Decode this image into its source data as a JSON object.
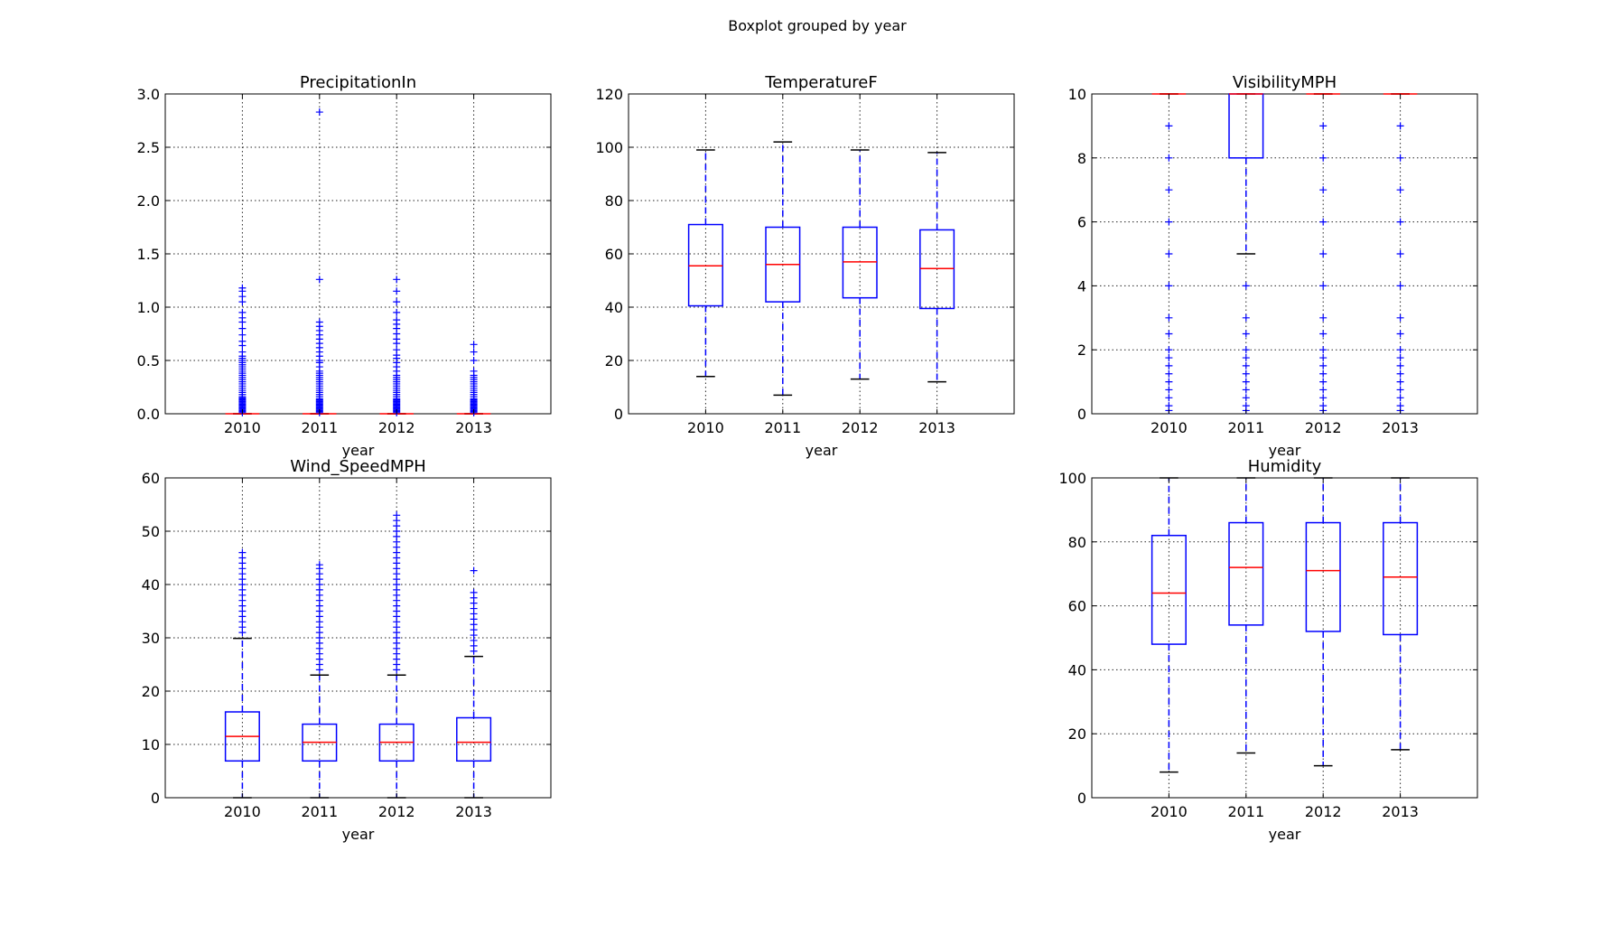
{
  "colors": {
    "box": "#0000ff",
    "median": "#ff0000",
    "cap": "#000000",
    "flier": "#0000ff",
    "background": "#ffffff"
  },
  "chart_data": {
    "type": "boxplot",
    "title": "Boxplot grouped by year",
    "panels": [
      {
        "title": "PrecipitationIn",
        "xlabel": "year",
        "categories": [
          "2010",
          "2011",
          "2012",
          "2013"
        ],
        "ylim": [
          0,
          3.0
        ],
        "yticks": [
          0,
          0.5,
          1.0,
          1.5,
          2.0,
          2.5,
          3.0
        ],
        "ytick_labels": [
          "0.0",
          "0.5",
          "1.0",
          "1.5",
          "2.0",
          "2.5",
          "3.0"
        ],
        "grid": true,
        "boxes": [
          {
            "q1": 0,
            "median": 0,
            "q3": 0,
            "whislo": 0,
            "whishi": 0,
            "fliers": [
              0.01,
              0.02,
              0.03,
              0.04,
              0.05,
              0.06,
              0.07,
              0.08,
              0.09,
              0.1,
              0.11,
              0.12,
              0.13,
              0.14,
              0.15,
              0.16,
              0.18,
              0.2,
              0.22,
              0.24,
              0.26,
              0.28,
              0.3,
              0.32,
              0.34,
              0.36,
              0.38,
              0.4,
              0.42,
              0.44,
              0.46,
              0.48,
              0.5,
              0.52,
              0.54,
              0.58,
              0.64,
              0.68,
              0.74,
              0.8,
              0.86,
              0.9,
              0.95,
              1.05,
              1.1,
              1.15,
              1.18
            ]
          },
          {
            "q1": 0,
            "median": 0,
            "q3": 0,
            "whislo": 0,
            "whishi": 0,
            "fliers": [
              0.01,
              0.02,
              0.03,
              0.04,
              0.05,
              0.06,
              0.07,
              0.08,
              0.09,
              0.1,
              0.11,
              0.12,
              0.13,
              0.14,
              0.16,
              0.18,
              0.2,
              0.22,
              0.24,
              0.26,
              0.28,
              0.3,
              0.32,
              0.34,
              0.36,
              0.38,
              0.4,
              0.44,
              0.48,
              0.5,
              0.54,
              0.58,
              0.62,
              0.66,
              0.7,
              0.74,
              0.78,
              0.82,
              0.86,
              1.26,
              2.83
            ]
          },
          {
            "q1": 0,
            "median": 0,
            "q3": 0,
            "whislo": 0,
            "whishi": 0,
            "fliers": [
              0.01,
              0.02,
              0.03,
              0.04,
              0.05,
              0.06,
              0.07,
              0.08,
              0.09,
              0.1,
              0.11,
              0.12,
              0.13,
              0.14,
              0.16,
              0.18,
              0.2,
              0.22,
              0.24,
              0.26,
              0.28,
              0.3,
              0.32,
              0.34,
              0.36,
              0.4,
              0.44,
              0.48,
              0.52,
              0.55,
              0.6,
              0.66,
              0.7,
              0.75,
              0.8,
              0.84,
              0.88,
              0.95,
              1.05,
              1.15,
              1.26
            ]
          },
          {
            "q1": 0,
            "median": 0,
            "q3": 0,
            "whislo": 0,
            "whishi": 0,
            "fliers": [
              0.01,
              0.02,
              0.03,
              0.04,
              0.05,
              0.06,
              0.07,
              0.08,
              0.09,
              0.1,
              0.11,
              0.12,
              0.13,
              0.14,
              0.16,
              0.18,
              0.2,
              0.22,
              0.24,
              0.26,
              0.28,
              0.3,
              0.32,
              0.34,
              0.36,
              0.4,
              0.5,
              0.58,
              0.65
            ]
          }
        ]
      },
      {
        "title": "TemperatureF",
        "xlabel": "year",
        "categories": [
          "2010",
          "2011",
          "2012",
          "2013"
        ],
        "ylim": [
          0,
          120
        ],
        "yticks": [
          0,
          20,
          40,
          60,
          80,
          100,
          120
        ],
        "ytick_labels": [
          "0",
          "20",
          "40",
          "60",
          "80",
          "100",
          "120"
        ],
        "grid": true,
        "boxes": [
          {
            "q1": 40.5,
            "median": 55.5,
            "q3": 71,
            "whislo": 14,
            "whishi": 99,
            "fliers": []
          },
          {
            "q1": 42,
            "median": 56,
            "q3": 70,
            "whislo": 7,
            "whishi": 102,
            "fliers": []
          },
          {
            "q1": 43.5,
            "median": 57,
            "q3": 70,
            "whislo": 13,
            "whishi": 99,
            "fliers": []
          },
          {
            "q1": 39.5,
            "median": 54.5,
            "q3": 69,
            "whislo": 12,
            "whishi": 98,
            "fliers": []
          }
        ]
      },
      {
        "title": "VisibilityMPH",
        "xlabel": "year",
        "categories": [
          "2010",
          "2011",
          "2012",
          "2013"
        ],
        "ylim": [
          0,
          10
        ],
        "yticks": [
          0,
          2,
          4,
          6,
          8,
          10
        ],
        "ytick_labels": [
          "0",
          "2",
          "4",
          "6",
          "8",
          "10"
        ],
        "grid": true,
        "boxes": [
          {
            "q1": 10,
            "median": 10,
            "q3": 10,
            "whislo": 10,
            "whishi": 10,
            "fliers": [
              0.1,
              0.25,
              0.5,
              0.75,
              1.0,
              1.25,
              1.5,
              1.75,
              2.0,
              2.5,
              3.0,
              4.0,
              5.0,
              6.0,
              7.0,
              8.0,
              9.0
            ]
          },
          {
            "q1": 8,
            "median": 10,
            "q3": 10,
            "whislo": 5,
            "whishi": 10,
            "fliers": [
              0.1,
              0.25,
              0.5,
              0.75,
              1.0,
              1.25,
              1.5,
              1.75,
              2.0,
              2.5,
              3.0,
              4.0
            ]
          },
          {
            "q1": 10,
            "median": 10,
            "q3": 10,
            "whislo": 10,
            "whishi": 10,
            "fliers": [
              0.1,
              0.25,
              0.5,
              0.75,
              1.0,
              1.25,
              1.5,
              1.75,
              2.0,
              2.5,
              3.0,
              4.0,
              5.0,
              6.0,
              7.0,
              8.0,
              9.0
            ]
          },
          {
            "q1": 10,
            "median": 10,
            "q3": 10,
            "whislo": 10,
            "whishi": 10,
            "fliers": [
              0.1,
              0.25,
              0.5,
              0.75,
              1.0,
              1.25,
              1.5,
              1.75,
              2.0,
              2.5,
              3.0,
              4.0,
              5.0,
              6.0,
              7.0,
              8.0,
              9.0
            ]
          }
        ]
      },
      {
        "title": "Wind_SpeedMPH",
        "xlabel": "year",
        "categories": [
          "2010",
          "2011",
          "2012",
          "2013"
        ],
        "ylim": [
          0,
          60
        ],
        "yticks": [
          0,
          10,
          20,
          30,
          40,
          50,
          60
        ],
        "ytick_labels": [
          "0",
          "10",
          "20",
          "30",
          "40",
          "50",
          "60"
        ],
        "grid": true,
        "boxes": [
          {
            "q1": 6.9,
            "median": 11.5,
            "q3": 16.1,
            "whislo": 0,
            "whishi": 29.9,
            "fliers": [
              31,
              32,
              33,
              34,
              35,
              36,
              37,
              38,
              39,
              40,
              41,
              42,
              43,
              44,
              45,
              46
            ]
          },
          {
            "q1": 6.9,
            "median": 10.4,
            "q3": 13.8,
            "whislo": 0,
            "whishi": 23,
            "fliers": [
              24,
              25,
              26,
              27,
              28,
              29,
              30,
              31,
              32,
              33,
              34,
              35,
              36,
              37,
              38,
              39,
              40,
              41,
              42,
              43,
              43.7
            ]
          },
          {
            "q1": 6.9,
            "median": 10.4,
            "q3": 13.8,
            "whislo": 0,
            "whishi": 23,
            "fliers": [
              24,
              25,
              26,
              27,
              28,
              29,
              30,
              31,
              32,
              33,
              34,
              35,
              36,
              37,
              38,
              39,
              40,
              41,
              42,
              43,
              44,
              45,
              46,
              47,
              48,
              49,
              50,
              51,
              52,
              53
            ]
          },
          {
            "q1": 6.9,
            "median": 10.4,
            "q3": 15,
            "whislo": 0,
            "whishi": 26.5,
            "fliers": [
              27.5,
              28.5,
              29.5,
              30.5,
              31.5,
              32.5,
              33.5,
              34.5,
              35.5,
              36.5,
              37.5,
              38.5,
              42.6
            ]
          }
        ]
      },
      {
        "title": "Humidity",
        "xlabel": "year",
        "categories": [
          "2010",
          "2011",
          "2012",
          "2013"
        ],
        "ylim": [
          0,
          100
        ],
        "yticks": [
          0,
          20,
          40,
          60,
          80,
          100
        ],
        "ytick_labels": [
          "0",
          "20",
          "40",
          "60",
          "80",
          "100"
        ],
        "grid": true,
        "boxes": [
          {
            "q1": 48,
            "median": 64,
            "q3": 82,
            "whislo": 8,
            "whishi": 100,
            "fliers": []
          },
          {
            "q1": 54,
            "median": 72,
            "q3": 86,
            "whislo": 14,
            "whishi": 100,
            "fliers": []
          },
          {
            "q1": 52,
            "median": 71,
            "q3": 86,
            "whislo": 10,
            "whishi": 100,
            "fliers": []
          },
          {
            "q1": 51,
            "median": 69,
            "q3": 86,
            "whislo": 15,
            "whishi": 100,
            "fliers": []
          }
        ]
      }
    ]
  }
}
